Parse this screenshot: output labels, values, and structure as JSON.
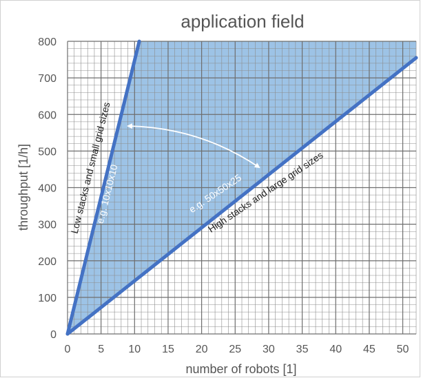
{
  "chart_data": {
    "type": "area",
    "title": "application field",
    "xlabel": "number of robots [1]",
    "ylabel": "throughput [1/h]",
    "xlim": [
      0,
      52
    ],
    "ylim": [
      0,
      800
    ],
    "x_ticks": [
      0,
      5,
      10,
      15,
      20,
      25,
      30,
      35,
      40,
      45,
      50
    ],
    "y_ticks": [
      0,
      100,
      200,
      300,
      400,
      500,
      600,
      700,
      800
    ],
    "grid": true,
    "series": [
      {
        "x": [
          0,
          10.7
        ],
        "y": [
          0,
          800
        ]
      },
      {
        "x": [
          0,
          52
        ],
        "y": [
          0,
          755
        ]
      }
    ],
    "shaded_region": {
      "x": [
        0,
        10.7,
        52,
        52
      ],
      "y": [
        0,
        800,
        800,
        755
      ]
    },
    "annotations": [
      {
        "text": "Low stacks and small grid sizes",
        "color": "#222222"
      },
      {
        "text": "e.g. 10x10x10",
        "color": "#ffffff"
      },
      {
        "text": "e.g. 50x50x25",
        "color": "#ffffff"
      },
      {
        "text": "High stacks and large grid sizes",
        "color": "#222222"
      }
    ],
    "colors": {
      "line": "#4472c4",
      "fill": "#9dc3e6",
      "grid": "#8c8c8c",
      "arrow": "#ffffff"
    }
  }
}
